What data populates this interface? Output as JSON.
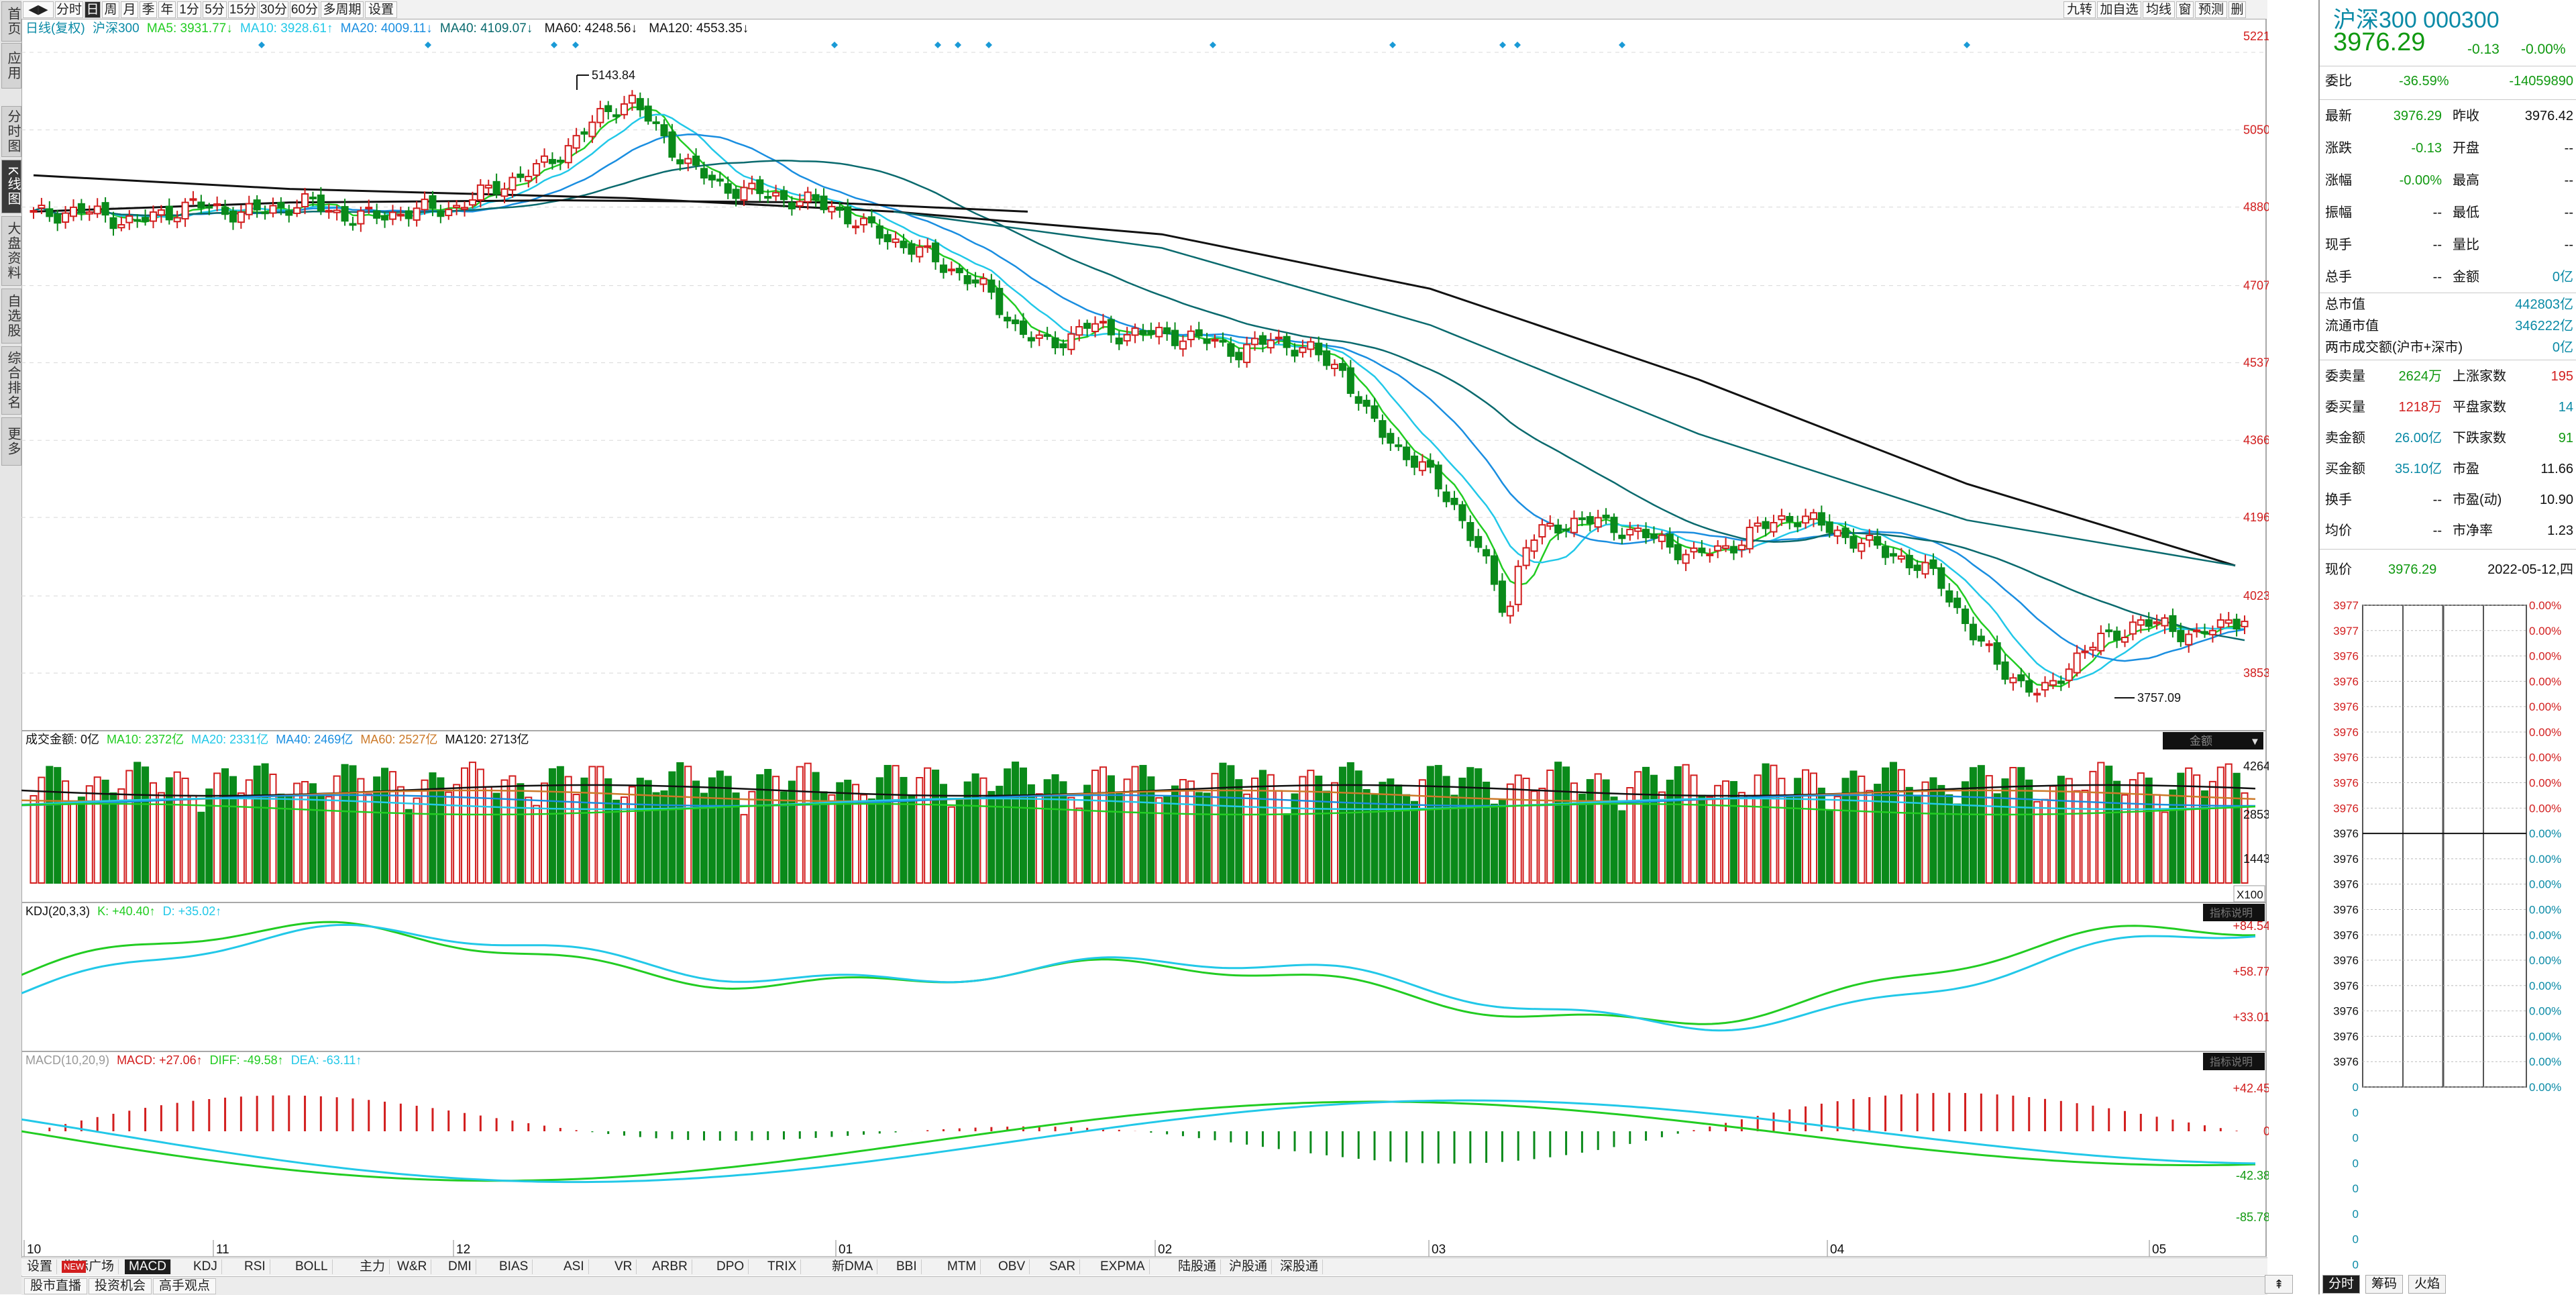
{
  "colors": {
    "up": "#d21e1e",
    "down": "#0a8a1a",
    "ma5": "#22cc22",
    "ma10": "#22c8e8",
    "ma20": "#1a8ee0",
    "ma40": "#0a6a6e",
    "ma60": "#cc7a2a",
    "ma120": "#111111",
    "k": "#22cc22",
    "d": "#22c8e8",
    "cyan": "#0a8aa6"
  },
  "left_nav": [
    {
      "label": "首页",
      "icon": "home-icon"
    },
    {
      "label": "应用",
      "icon": "apps-icon"
    },
    {
      "label": "分时图"
    },
    {
      "label": "K线图"
    },
    {
      "label": "大盘资料"
    },
    {
      "label": "自选股"
    },
    {
      "label": "综合排名"
    },
    {
      "label": "更多"
    }
  ],
  "top_toolbar": {
    "arrow_icon": "nav-arrows-icon",
    "periods": [
      "分时",
      "日",
      "周",
      "月",
      "季",
      "年",
      "1分",
      "5分",
      "15分",
      "30分",
      "60分",
      "多周期",
      "设置"
    ],
    "active_period": "日",
    "right_buttons": [
      "九转",
      "加自选",
      "均线",
      "窗",
      "预测",
      "删"
    ]
  },
  "main_chart": {
    "legend": {
      "mode": "日线(复权)",
      "name": "沪深300",
      "ma5": "MA5: 3931.77↓",
      "ma10": "MA10: 3928.61↑",
      "ma20": "MA20: 4009.11↓",
      "ma40": "MA40: 4109.07↓",
      "ma60": "MA60: 4248.56↓",
      "ma120": "MA120: 4553.35↓"
    },
    "price_ticks": [
      "5221",
      "5050",
      "4880",
      "4707",
      "4537",
      "4366",
      "4196",
      "4023",
      "3853"
    ],
    "price_labels": {
      "high": "5143.84",
      "low": "3757.09"
    },
    "volume_legend": {
      "title": "成交金额: 0亿",
      "ma10": "MA10: 2372亿",
      "ma20": "MA20: 2331亿",
      "ma40": "MA40: 2469亿",
      "ma60": "MA60: 2527亿",
      "ma120": "MA120: 2713亿"
    },
    "volume_ticks": [
      "4264",
      "2853",
      "1443"
    ],
    "volume_unit": "X100",
    "volume_badge": "金额",
    "kdj_legend": {
      "title": "KDJ(20,3,3)",
      "k": "K: +40.40↑",
      "d": "D: +35.02↑"
    },
    "kdj_ticks": [
      "+84.54",
      "+58.77",
      "+33.01"
    ],
    "kdj_badge": "指标说明",
    "macd_legend": {
      "title": "MACD(10,20,9)",
      "macd": "MACD: +27.06↑",
      "diff": "DIFF: -49.58↑",
      "dea": "DEA: -63.11↑"
    },
    "macd_ticks": [
      "+42.45",
      "0",
      "-42.38",
      "-85.78"
    ],
    "macd_badge": "指标说明",
    "date_ticks": [
      "10",
      "11",
      "12",
      "01",
      "02",
      "03",
      "04",
      "05"
    ]
  },
  "indicator_tabs": [
    "设置",
    "指标广场",
    "MACD",
    "KDJ",
    "RSI",
    "BOLL",
    "主力",
    "W&R",
    "DMI",
    "BIAS",
    "ASI",
    "VR",
    "ARBR",
    "DPO",
    "TRIX",
    "新DMA",
    "BBI",
    "MTM",
    "OBV",
    "SAR",
    "EXPMA",
    "陆股通",
    "沪股通",
    "深股通"
  ],
  "indicator_new_badge": "NEW",
  "active_indicator_tab": "MACD",
  "status_bar": {
    "buttons": [
      "股市直播",
      "投资机会",
      "高手观点"
    ]
  },
  "quote": {
    "title": "沪深300 000300",
    "price": "3976.29",
    "change": "-0.13",
    "change_pct": "-0.00%",
    "webi_label": "委比",
    "webi_pct": "-36.59%",
    "webi_val": "-14059890",
    "rows": [
      {
        "l1": "最新",
        "v1": "3976.29",
        "c1": "g",
        "l2": "昨收",
        "v2": "3976.42",
        "c2": "blk"
      },
      {
        "l1": "涨跌",
        "v1": "-0.13",
        "c1": "g",
        "l2": "开盘",
        "v2": "--",
        "c2": "blk"
      },
      {
        "l1": "涨幅",
        "v1": "-0.00%",
        "c1": "g",
        "l2": "最高",
        "v2": "--",
        "c2": "blk"
      },
      {
        "l1": "振幅",
        "v1": "--",
        "c1": "blk",
        "l2": "最低",
        "v2": "--",
        "c2": "blk"
      },
      {
        "l1": "现手",
        "v1": "--",
        "c1": "blk",
        "l2": "量比",
        "v2": "--",
        "c2": "blk"
      },
      {
        "l1": "总手",
        "v1": "--",
        "c1": "blk",
        "l2": "金额",
        "v2": "0亿",
        "c2": "c"
      }
    ],
    "caps": [
      {
        "l": "总市值",
        "v": "442803亿"
      },
      {
        "l": "流通市值",
        "v": "346222亿"
      },
      {
        "l": "两市成交额(沪市+深市)",
        "v": "0亿"
      }
    ],
    "stats": [
      {
        "l1": "委卖量",
        "v1": "2624万",
        "c1": "g",
        "l2": "上涨家数",
        "v2": "195",
        "c2": "r"
      },
      {
        "l1": "委买量",
        "v1": "1218万",
        "c1": "r",
        "l2": "平盘家数",
        "v2": "14",
        "c2": "c"
      },
      {
        "l1": "卖金额",
        "v1": "26.00亿",
        "c1": "c",
        "l2": "下跌家数",
        "v2": "91",
        "c2": "g"
      },
      {
        "l1": "买金额",
        "v1": "35.10亿",
        "c1": "c",
        "l2": "市盈",
        "v2": "11.66",
        "c2": "blk"
      },
      {
        "l1": "换手",
        "v1": "--",
        "c1": "blk",
        "l2": "市盈(动)",
        "v2": "10.90",
        "c2": "blk"
      },
      {
        "l1": "均价",
        "v1": "--",
        "c1": "blk",
        "l2": "市净率",
        "v2": "1.23",
        "c2": "blk"
      }
    ],
    "current_label": "现价",
    "current_value": "3976.29",
    "date": "2022-05-12,四",
    "mini_left_ticks": [
      "3977",
      "3977",
      "3976",
      "3976",
      "3976",
      "3976",
      "3976",
      "3976",
      "3976",
      "3976",
      "3976",
      "3976",
      "3976",
      "3976",
      "3976",
      "3976",
      "3976",
      "3976",
      "3976",
      "0",
      "0",
      "0",
      "0",
      "0",
      "0",
      "0",
      "0",
      "0"
    ],
    "mini_right_ticks": [
      "0.00%",
      "0.00%",
      "0.00%",
      "0.00%",
      "0.00%",
      "0.00%",
      "0.00%",
      "0.00%",
      "0.00%",
      "0.00%",
      "0.00%",
      "0.00%",
      "0.00%",
      "0.00%",
      "0.00%",
      "0.00%",
      "0.00%",
      "0.00%",
      "0.00%",
      "0.00%"
    ],
    "tabs": [
      "分时",
      "筹码",
      "火焰"
    ],
    "expand_icon": "collapse-up-icon"
  },
  "chart_data": {
    "type": "candlestick",
    "title": "沪深300",
    "ylim": [
      3757.09,
      5221
    ],
    "x": [
      "10",
      "11",
      "12",
      "01",
      "02",
      "03",
      "04",
      "05"
    ],
    "anchors": [
      {
        "date": "10",
        "close": 4860
      },
      {
        "date": "11",
        "close": 4880
      },
      {
        "date": "12",
        "close": 4870
      },
      {
        "high": 5143.84
      },
      {
        "date": "01",
        "close": 4890
      },
      {
        "date": "02",
        "close": 4590
      },
      {
        "date": "03",
        "close": 4520
      },
      {
        "date": "03-mid",
        "close": 3960
      },
      {
        "date": "04",
        "close": 4240
      },
      {
        "low": 3757.09
      },
      {
        "date": "05",
        "close": 3976.29
      }
    ]
  }
}
